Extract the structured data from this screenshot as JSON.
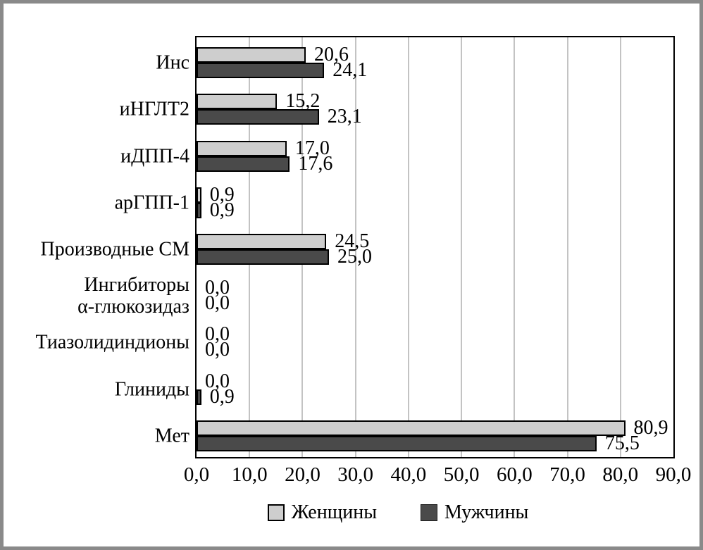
{
  "chart_data": {
    "type": "bar",
    "orientation": "horizontal",
    "title": "",
    "xlabel": "",
    "ylabel": "",
    "categories": [
      "Инс",
      "иНГЛТ2",
      "иДПП-4",
      "арГПП-1",
      "Производные СМ",
      "Ингибиторы\nα-глюкозидаз",
      "Тиазолидиндионы",
      "Глиниды",
      "Мет"
    ],
    "series": [
      {
        "name": "Женщины",
        "color": "#cecece",
        "values": [
          20.6,
          15.2,
          17.0,
          0.9,
          24.5,
          0.0,
          0.0,
          0.0,
          80.9
        ],
        "value_labels": [
          "20,6",
          "15,2",
          "17,0",
          "0,9",
          "24,5",
          "0,0",
          "0,0",
          "0,0",
          "80,9"
        ]
      },
      {
        "name": "Мужчины",
        "color": "#4a4a4a",
        "values": [
          24.1,
          23.1,
          17.6,
          0.9,
          25.0,
          0.0,
          0.0,
          0.9,
          75.5
        ],
        "value_labels": [
          "24,1",
          "23,1",
          "17,6",
          "0,9",
          "25,0",
          "0,0",
          "0,0",
          "0,9",
          "75,5"
        ]
      }
    ],
    "xlim": [
      0,
      90
    ],
    "x_ticks": {
      "values": [
        0,
        10,
        20,
        30,
        40,
        50,
        60,
        70,
        80,
        90
      ],
      "labels": [
        "0,0",
        "10,0",
        "20,0",
        "30,0",
        "40,0",
        "50,0",
        "60,0",
        "70,0",
        "80,0",
        "90,0"
      ]
    },
    "grid": "vertical",
    "legend_position": "bottom"
  },
  "colors": {
    "women_bar": "#cecece",
    "men_bar": "#4a4a4a",
    "gridline": "#c3c3c3",
    "plot_border": "#000000",
    "frame_border": "#8a8a8a"
  }
}
